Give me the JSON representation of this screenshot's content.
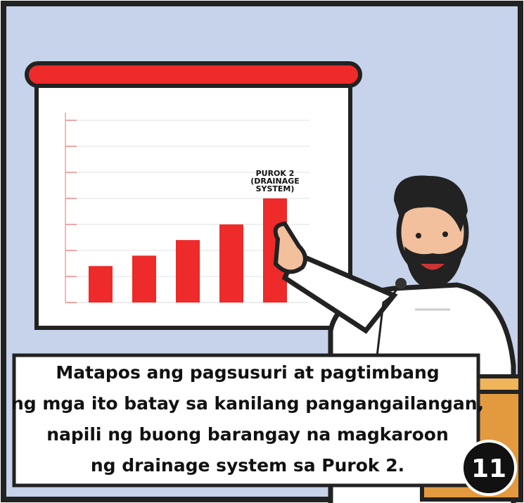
{
  "chart_data": {
    "type": "bar",
    "categories": [
      null,
      null,
      null,
      null,
      null
    ],
    "values": [
      1.4,
      1.8,
      2.4,
      3.0,
      4.0
    ],
    "color": "#ee2a2a",
    "ylim": [
      0,
      7
    ],
    "yticks": [
      0,
      1,
      2,
      3,
      4,
      5,
      6,
      7
    ],
    "grid": true,
    "annotation": "PUROK 2 (DRAINAGE SYSTEM)"
  },
  "caption": [
    "Matapos ang pagsusuri at pagtimbang",
    "ng mga ito batay sa kanilang pangangailangan,",
    "napili ng buong barangay na magkaroon",
    "ng drainage system sa Purok 2."
  ],
  "panel_number": "11"
}
